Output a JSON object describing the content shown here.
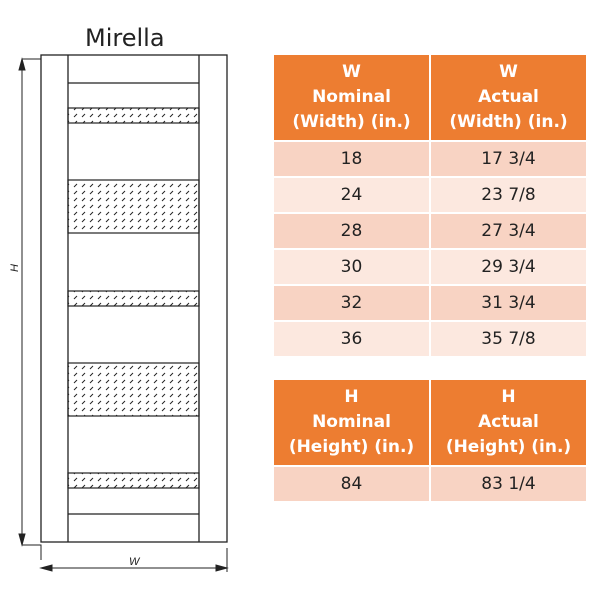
{
  "title": "Mirella",
  "dimension_labels": {
    "height": "H",
    "width": "W"
  },
  "colors": {
    "header": "#ED7D31",
    "row_odd": "#F8D3C3",
    "row_even": "#FCE8DF"
  },
  "width_table": {
    "headers": [
      [
        "W",
        "Nominal",
        "(Width) (in.)"
      ],
      [
        "W",
        "Actual",
        "(Width) (in.)"
      ]
    ],
    "rows": [
      [
        "18",
        "17 3/4"
      ],
      [
        "24",
        "23 7/8"
      ],
      [
        "28",
        "27 3/4"
      ],
      [
        "30",
        "29 3/4"
      ],
      [
        "32",
        "31 3/4"
      ],
      [
        "36",
        "35 7/8"
      ]
    ]
  },
  "height_table": {
    "headers": [
      [
        "H",
        "Nominal",
        "(Height) (in.)"
      ],
      [
        "H",
        "Actual",
        "(Height) (in.)"
      ]
    ],
    "rows": [
      [
        "84",
        "83 1/4"
      ]
    ]
  }
}
